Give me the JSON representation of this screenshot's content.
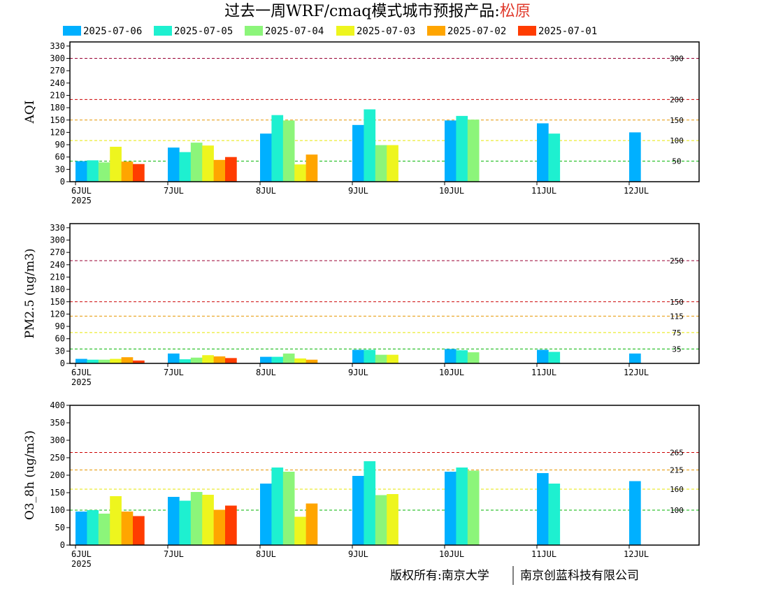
{
  "title": "过去一周WRF/cmaq模式城市预报产品:",
  "city": "松原",
  "colors": {
    "city": "#e0392b",
    "series": [
      "#00b0ff",
      "#1ef0d0",
      "#8cf57a",
      "#eef51e",
      "#ffa500",
      "#ff3c00"
    ]
  },
  "footer": {
    "left": "版权所有:南京大学",
    "right": "南京创蓝科技有限公司"
  },
  "chart_data": [
    {
      "type": "bar",
      "ylabel": "AQI",
      "ylim": [
        0,
        340
      ],
      "yticks": [
        0,
        30,
        60,
        90,
        120,
        150,
        180,
        210,
        240,
        270,
        300,
        330
      ],
      "categories": [
        "6JUL",
        "7JUL",
        "8JUL",
        "9JUL",
        "10JUL",
        "11JUL",
        "12JUL"
      ],
      "year_label": "2025",
      "thresholds": [
        {
          "value": 50,
          "label": "50",
          "color": "#00b400"
        },
        {
          "value": 100,
          "label": "100",
          "color": "#e6e600"
        },
        {
          "value": 150,
          "label": "150",
          "color": "#e69600"
        },
        {
          "value": 200,
          "label": "200",
          "color": "#cc0000"
        },
        {
          "value": 300,
          "label": "300",
          "color": "#990033"
        }
      ],
      "series": [
        {
          "name": "2025-07-06",
          "values": [
            50,
            83,
            117,
            138,
            149,
            142,
            120
          ]
        },
        {
          "name": "2025-07-05",
          "values": [
            52,
            72,
            162,
            176,
            160,
            117,
            null
          ]
        },
        {
          "name": "2025-07-04",
          "values": [
            47,
            95,
            149,
            89,
            151,
            null,
            null
          ]
        },
        {
          "name": "2025-07-03",
          "values": [
            85,
            88,
            42,
            89,
            null,
            null,
            null
          ]
        },
        {
          "name": "2025-07-02",
          "values": [
            49,
            53,
            66,
            null,
            null,
            null,
            null
          ]
        },
        {
          "name": "2025-07-01",
          "values": [
            43,
            60,
            null,
            null,
            null,
            null,
            null
          ]
        }
      ]
    },
    {
      "type": "bar",
      "ylabel": "PM2.5 (ug/m3)",
      "ylim": [
        0,
        340
      ],
      "yticks": [
        0,
        30,
        60,
        90,
        120,
        150,
        180,
        210,
        240,
        270,
        300,
        330
      ],
      "categories": [
        "6JUL",
        "7JUL",
        "8JUL",
        "9JUL",
        "10JUL",
        "11JUL",
        "12JUL"
      ],
      "year_label": "2025",
      "thresholds": [
        {
          "value": 35,
          "label": "35",
          "color": "#00b400"
        },
        {
          "value": 75,
          "label": "75",
          "color": "#e6e600"
        },
        {
          "value": 115,
          "label": "115",
          "color": "#e69600"
        },
        {
          "value": 150,
          "label": "150",
          "color": "#cc0000"
        },
        {
          "value": 250,
          "label": "250",
          "color": "#990033"
        }
      ],
      "series": [
        {
          "name": "2025-07-06",
          "values": [
            11,
            24,
            16,
            33,
            35,
            33,
            24
          ]
        },
        {
          "name": "2025-07-05",
          "values": [
            9,
            10,
            16,
            33,
            32,
            28,
            null
          ]
        },
        {
          "name": "2025-07-04",
          "values": [
            9,
            14,
            24,
            21,
            27,
            null,
            null
          ]
        },
        {
          "name": "2025-07-03",
          "values": [
            11,
            20,
            12,
            21,
            null,
            null,
            null
          ]
        },
        {
          "name": "2025-07-02",
          "values": [
            15,
            17,
            9,
            null,
            null,
            null,
            null
          ]
        },
        {
          "name": "2025-07-01",
          "values": [
            7,
            13,
            null,
            null,
            null,
            null,
            null
          ]
        }
      ]
    },
    {
      "type": "bar",
      "ylabel": "O3_8h (ug/m3)",
      "ylim": [
        0,
        400
      ],
      "yticks": [
        0,
        50,
        100,
        150,
        200,
        250,
        300,
        350,
        400
      ],
      "categories": [
        "6JUL",
        "7JUL",
        "8JUL",
        "9JUL",
        "10JUL",
        "11JUL",
        "12JUL"
      ],
      "year_label": "2025",
      "thresholds": [
        {
          "value": 100,
          "label": "100",
          "color": "#00b400"
        },
        {
          "value": 160,
          "label": "160",
          "color": "#e6e600"
        },
        {
          "value": 215,
          "label": "215",
          "color": "#e69600"
        },
        {
          "value": 265,
          "label": "265",
          "color": "#cc0000"
        }
      ],
      "series": [
        {
          "name": "2025-07-06",
          "values": [
            96,
            138,
            176,
            198,
            210,
            206,
            183
          ]
        },
        {
          "name": "2025-07-05",
          "values": [
            100,
            127,
            222,
            240,
            222,
            176,
            null
          ]
        },
        {
          "name": "2025-07-04",
          "values": [
            90,
            152,
            210,
            143,
            213,
            null,
            null
          ]
        },
        {
          "name": "2025-07-03",
          "values": [
            140,
            144,
            81,
            146,
            null,
            null,
            null
          ]
        },
        {
          "name": "2025-07-02",
          "values": [
            96,
            101,
            119,
            null,
            null,
            null,
            null
          ]
        },
        {
          "name": "2025-07-01",
          "values": [
            83,
            113,
            null,
            null,
            null,
            null,
            null
          ]
        }
      ]
    }
  ]
}
